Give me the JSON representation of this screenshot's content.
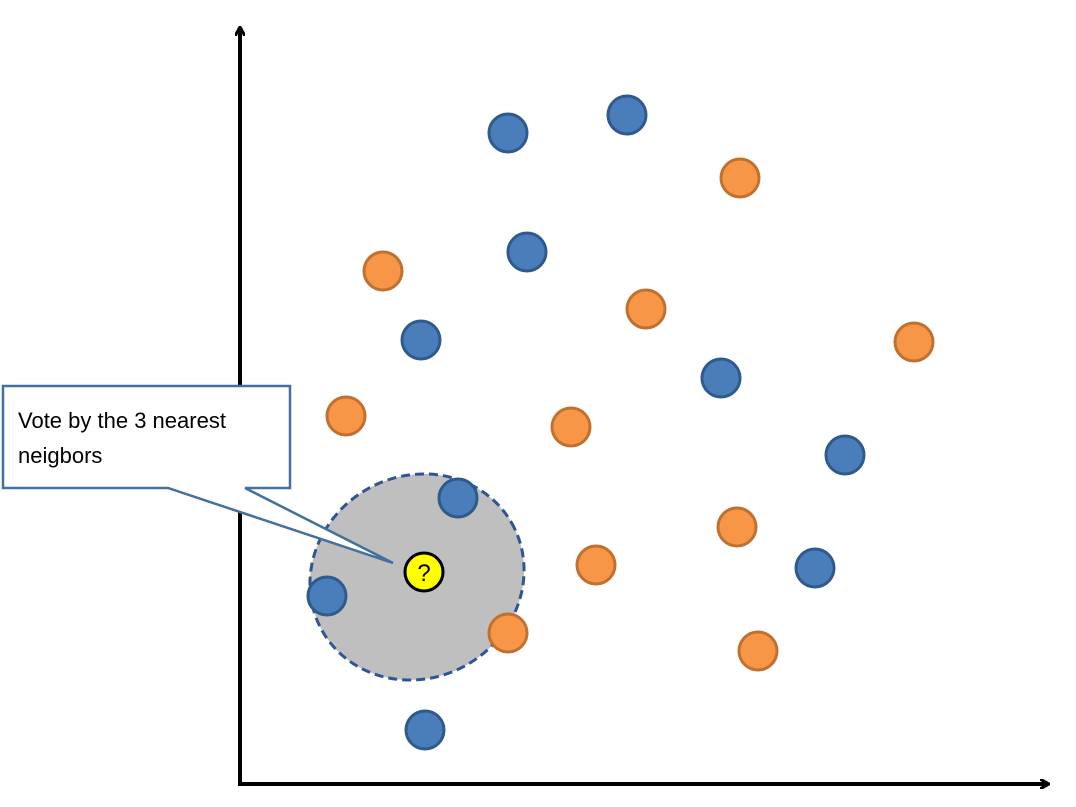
{
  "callout": {
    "lines": [
      "Vote by the 3 nearest",
      "neigbors"
    ]
  },
  "query": {
    "label": "?"
  }
}
